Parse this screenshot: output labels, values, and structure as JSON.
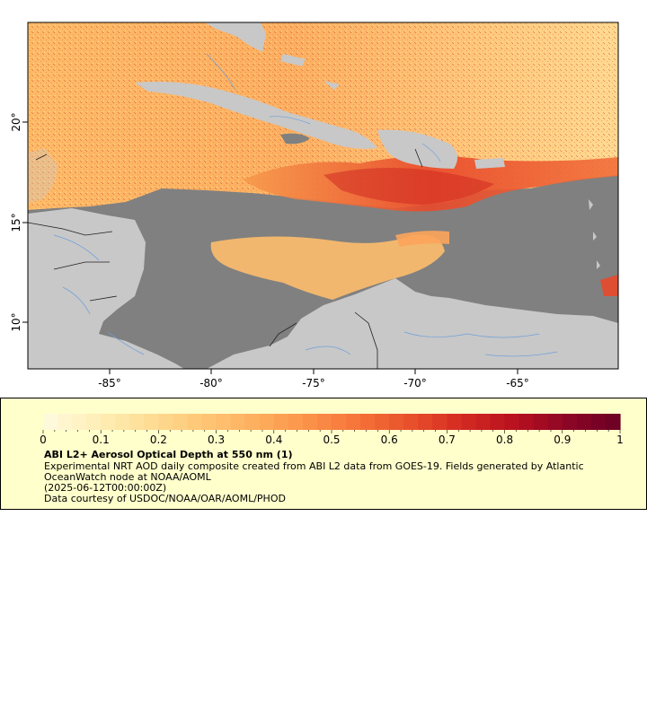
{
  "map": {
    "region": "Caribbean Sea",
    "extent": {
      "lon": [
        -88.9,
        -60.0
      ],
      "lat": [
        8.0,
        25.2
      ]
    },
    "x_ticks": [
      {
        "value": -85,
        "label": "-85°"
      },
      {
        "value": -80,
        "label": "-80°"
      },
      {
        "value": -75,
        "label": "-75°"
      },
      {
        "value": -70,
        "label": "-70°"
      },
      {
        "value": -65,
        "label": "-65°"
      }
    ],
    "y_ticks": [
      {
        "value": 20,
        "label": "20°"
      },
      {
        "value": 15,
        "label": "15°"
      },
      {
        "value": 10,
        "label": "10°"
      }
    ],
    "colors": {
      "ocean": "#808080",
      "land": "#c8c8c8",
      "borders": "#202020",
      "rivers": "#6fa0d8"
    }
  },
  "legend": {
    "title": "ABI L2+ Aerosol Optical Depth at 550 nm (1)",
    "description": "Experimental NRT AOD daily composite created from ABI L2 data from GOES-19. Fields generated by Atlantic OceanWatch node at NOAA/AOML",
    "description_line1": "Experimental NRT AOD daily composite created from ABI L2 data from GOES-19. Fields generated by Atlantic",
    "description_line2": "OceanWatch node at NOAA/AOML",
    "timestamp": "(2025-06-12T00:00:00Z)",
    "credit": "Data courtesy of USDOC/NOAA/OAR/AOML/PHOD",
    "scale_range": [
      0,
      1
    ],
    "tick_labels": [
      "0",
      "0.1",
      "0.2",
      "0.3",
      "0.4",
      "0.5",
      "0.6",
      "0.7",
      "0.8",
      "0.9",
      "1"
    ],
    "color_stops": [
      "#fffbe0",
      "#ffefb8",
      "#fedd95",
      "#fec877",
      "#fdb05f",
      "#fc944b",
      "#f57339",
      "#e8502b",
      "#d42a22",
      "#b8101f",
      "#8c0626",
      "#6a0024"
    ]
  }
}
